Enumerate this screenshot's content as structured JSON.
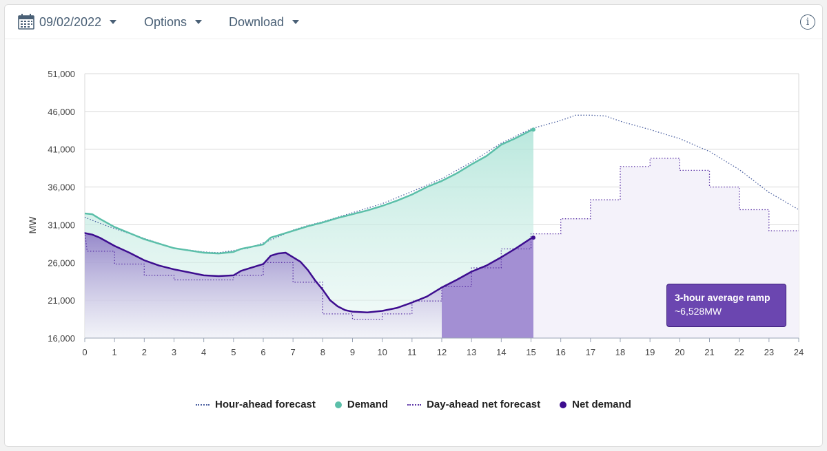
{
  "toolbar": {
    "date": "09/02/2022",
    "options_label": "Options",
    "download_label": "Download",
    "info_symbol": "i"
  },
  "colors": {
    "demand": "#5bbfa9",
    "net_demand": "#3d0d8f",
    "forecast_hour_ahead": "#4a5fa0",
    "forecast_day_ahead": "#5b33a6",
    "ramp_fill": "#a38fd3"
  },
  "callout": {
    "title": "3-hour average ramp",
    "value": "~6,528MW"
  },
  "chart_data": {
    "type": "line",
    "title": "",
    "xlabel": "",
    "ylabel": "MW",
    "xlim": [
      0,
      24
    ],
    "ylim": [
      16000,
      51000
    ],
    "x_ticks": [
      0,
      1,
      2,
      3,
      4,
      5,
      6,
      7,
      8,
      9,
      10,
      11,
      12,
      13,
      14,
      15,
      16,
      17,
      18,
      19,
      20,
      21,
      22,
      23,
      24
    ],
    "y_ticks": [
      16000,
      21000,
      26000,
      31000,
      36000,
      41000,
      46000,
      51000
    ],
    "y_tick_labels": [
      "16,000",
      "21,000",
      "26,000",
      "31,000",
      "36,000",
      "41,000",
      "46,000",
      "51,000"
    ],
    "grid": true,
    "highlight_range": [
      12,
      15.08
    ],
    "series": [
      {
        "name": "Hour-ahead forecast",
        "style": "dotted",
        "points": [
          [
            0,
            32000
          ],
          [
            0.5,
            31200
          ],
          [
            1,
            30500
          ],
          [
            2,
            29200
          ],
          [
            3,
            27900
          ],
          [
            4,
            27400
          ],
          [
            4.5,
            27300
          ],
          [
            5,
            27600
          ],
          [
            5.5,
            27900
          ],
          [
            6,
            28600
          ],
          [
            6.5,
            29400
          ],
          [
            7,
            30300
          ],
          [
            7.5,
            30900
          ],
          [
            8,
            31400
          ],
          [
            9,
            32600
          ],
          [
            10,
            33800
          ],
          [
            11,
            35400
          ],
          [
            12,
            37100
          ],
          [
            13,
            39300
          ],
          [
            14,
            41800
          ],
          [
            15,
            43700
          ],
          [
            16,
            44800
          ],
          [
            16.5,
            45500
          ],
          [
            17,
            45500
          ],
          [
            17.5,
            45400
          ],
          [
            18,
            44700
          ],
          [
            19,
            43600
          ],
          [
            20,
            42400
          ],
          [
            21,
            40700
          ],
          [
            22,
            38300
          ],
          [
            23,
            35300
          ],
          [
            24,
            33000
          ]
        ]
      },
      {
        "name": "Demand",
        "style": "solid",
        "points": [
          [
            0,
            32500
          ],
          [
            0.25,
            32400
          ],
          [
            0.5,
            31800
          ],
          [
            1,
            30700
          ],
          [
            1.5,
            29900
          ],
          [
            2,
            29100
          ],
          [
            2.5,
            28500
          ],
          [
            3,
            27900
          ],
          [
            3.5,
            27600
          ],
          [
            4,
            27300
          ],
          [
            4.5,
            27200
          ],
          [
            5,
            27400
          ],
          [
            5.25,
            27800
          ],
          [
            5.5,
            28000
          ],
          [
            6,
            28400
          ],
          [
            6.25,
            29300
          ],
          [
            6.5,
            29600
          ],
          [
            7,
            30200
          ],
          [
            7.5,
            30800
          ],
          [
            8,
            31300
          ],
          [
            8.5,
            31900
          ],
          [
            9,
            32400
          ],
          [
            9.5,
            32900
          ],
          [
            10,
            33500
          ],
          [
            10.5,
            34200
          ],
          [
            11,
            35000
          ],
          [
            11.5,
            36000
          ],
          [
            12,
            36800
          ],
          [
            12.5,
            37800
          ],
          [
            13,
            39000
          ],
          [
            13.5,
            40100
          ],
          [
            14,
            41600
          ],
          [
            14.5,
            42500
          ],
          [
            15,
            43500
          ],
          [
            15.08,
            43600
          ]
        ]
      },
      {
        "name": "Day-ahead net forecast",
        "style": "dotted-step",
        "points": [
          [
            0,
            30000
          ],
          [
            0.08,
            27500
          ],
          [
            1,
            27500
          ],
          [
            1,
            25800
          ],
          [
            2,
            25800
          ],
          [
            2,
            24300
          ],
          [
            3,
            24300
          ],
          [
            3,
            23700
          ],
          [
            5,
            23700
          ],
          [
            5,
            24300
          ],
          [
            6,
            24300
          ],
          [
            6,
            26000
          ],
          [
            7,
            26000
          ],
          [
            7,
            23400
          ],
          [
            8,
            23400
          ],
          [
            8,
            19200
          ],
          [
            9,
            19200
          ],
          [
            9,
            18500
          ],
          [
            10,
            18500
          ],
          [
            10,
            19200
          ],
          [
            11,
            19200
          ],
          [
            11,
            20900
          ],
          [
            12,
            20900
          ],
          [
            12,
            22800
          ],
          [
            13,
            22800
          ],
          [
            13,
            25300
          ],
          [
            14,
            25300
          ],
          [
            14,
            27800
          ],
          [
            15,
            27800
          ],
          [
            15,
            29800
          ],
          [
            16,
            29800
          ],
          [
            16,
            31800
          ],
          [
            17,
            31800
          ],
          [
            17,
            34300
          ],
          [
            18,
            34300
          ],
          [
            18,
            38700
          ],
          [
            19,
            38700
          ],
          [
            19,
            39800
          ],
          [
            20,
            39800
          ],
          [
            20,
            38200
          ],
          [
            21,
            38200
          ],
          [
            21,
            36000
          ],
          [
            22,
            36000
          ],
          [
            22,
            33000
          ],
          [
            23,
            33000
          ],
          [
            23,
            30200
          ],
          [
            24,
            30200
          ]
        ]
      },
      {
        "name": "Net demand",
        "style": "solid",
        "points": [
          [
            0,
            29900
          ],
          [
            0.25,
            29700
          ],
          [
            0.5,
            29300
          ],
          [
            1,
            28200
          ],
          [
            1.5,
            27300
          ],
          [
            2,
            26300
          ],
          [
            2.5,
            25600
          ],
          [
            3,
            25100
          ],
          [
            3.5,
            24700
          ],
          [
            4,
            24300
          ],
          [
            4.5,
            24200
          ],
          [
            5,
            24300
          ],
          [
            5.25,
            24900
          ],
          [
            5.5,
            25200
          ],
          [
            6,
            25800
          ],
          [
            6.25,
            26900
          ],
          [
            6.5,
            27200
          ],
          [
            6.75,
            27300
          ],
          [
            7,
            26700
          ],
          [
            7.25,
            26100
          ],
          [
            7.5,
            25000
          ],
          [
            7.75,
            23600
          ],
          [
            8,
            22400
          ],
          [
            8.25,
            21000
          ],
          [
            8.5,
            20200
          ],
          [
            8.75,
            19700
          ],
          [
            9,
            19500
          ],
          [
            9.5,
            19400
          ],
          [
            10,
            19600
          ],
          [
            10.5,
            20000
          ],
          [
            11,
            20700
          ],
          [
            11.5,
            21500
          ],
          [
            12,
            22700
          ],
          [
            12.5,
            23700
          ],
          [
            13,
            24800
          ],
          [
            13.5,
            25600
          ],
          [
            14,
            26700
          ],
          [
            14.5,
            27900
          ],
          [
            15,
            29200
          ],
          [
            15.08,
            29300
          ]
        ]
      }
    ]
  }
}
